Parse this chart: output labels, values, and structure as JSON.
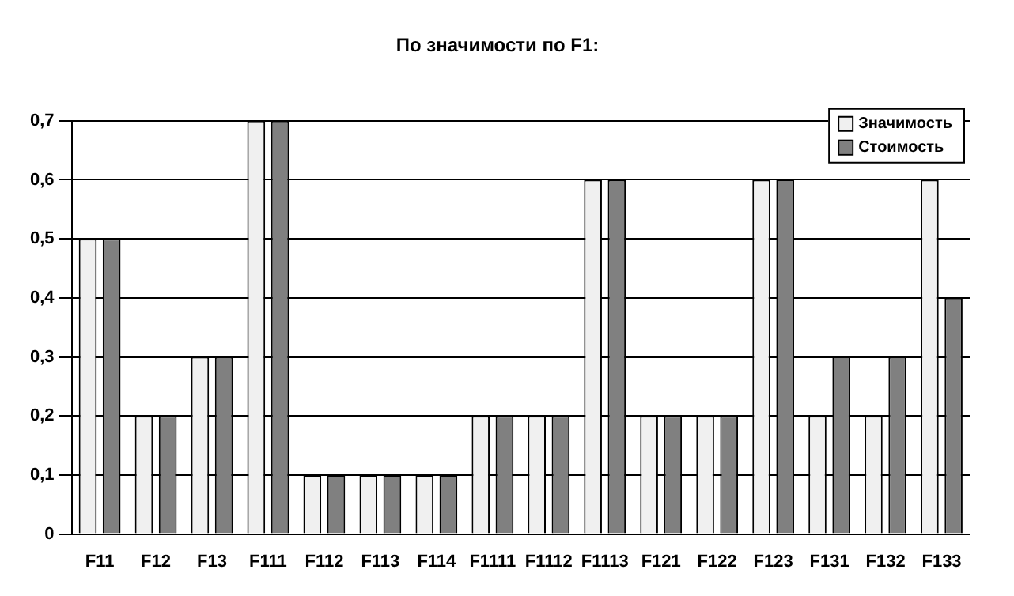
{
  "chart_data": {
    "type": "bar",
    "title": "По значимости по F1:",
    "categories": [
      "F11",
      "F12",
      "F13",
      "F111",
      "F112",
      "F113",
      "F114",
      "F1111",
      "F1112",
      "F1113",
      "F121",
      "F122",
      "F123",
      "F131",
      "F132",
      "F133"
    ],
    "series": [
      {
        "name": "Значимость",
        "color": "#f0f0f0",
        "values": [
          0.5,
          0.2,
          0.3,
          0.7,
          0.1,
          0.1,
          0.1,
          0.2,
          0.2,
          0.6,
          0.2,
          0.2,
          0.6,
          0.2,
          0.2,
          0.6
        ]
      },
      {
        "name": "Стоимость",
        "color": "#808080",
        "values": [
          0.5,
          0.2,
          0.3,
          0.7,
          0.1,
          0.1,
          0.1,
          0.2,
          0.2,
          0.6,
          0.2,
          0.2,
          0.6,
          0.3,
          0.3,
          0.4
        ]
      }
    ],
    "ylim": [
      0,
      0.7
    ],
    "yticks": [
      0,
      {
        "value": 0.1,
        "label": "0,1"
      },
      {
        "value": 0.2,
        "label": "0,2"
      },
      {
        "value": 0.3,
        "label": "0,3"
      },
      {
        "value": 0.4,
        "label": "0,4"
      },
      {
        "value": 0.5,
        "label": "0,5"
      },
      {
        "value": 0.6,
        "label": "0,6"
      },
      {
        "value": 0.7,
        "label": "0,7"
      }
    ],
    "grid": "y",
    "legend": "top right"
  }
}
